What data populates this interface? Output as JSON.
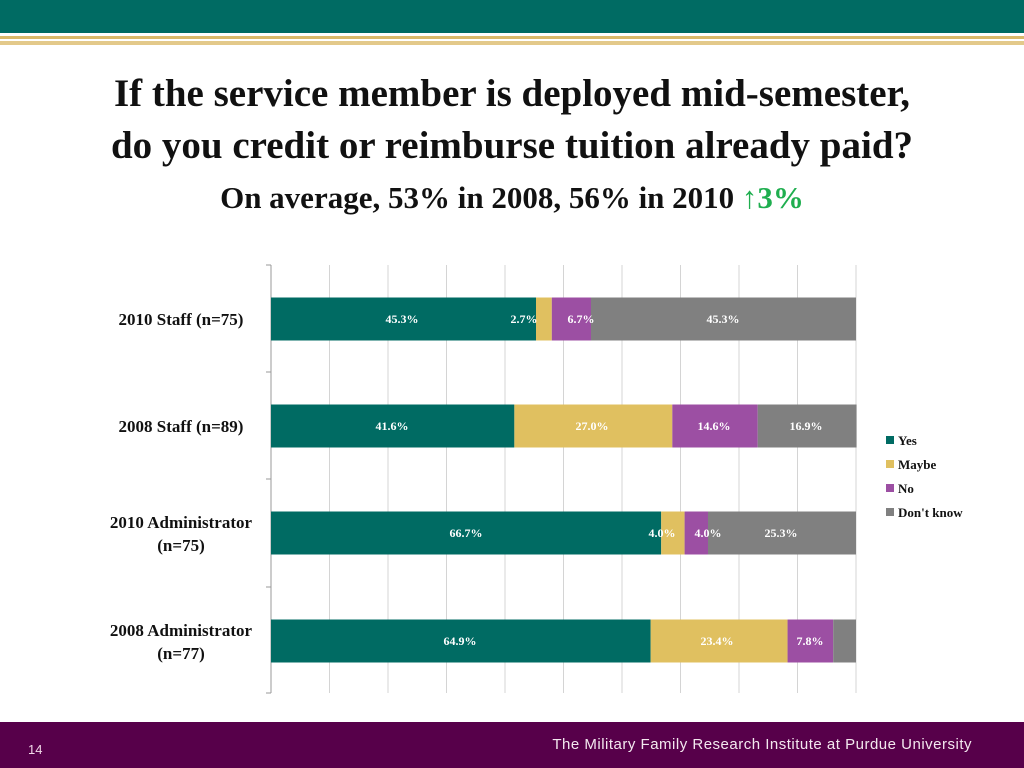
{
  "slide": {
    "title_line1": "If  the service member is deployed mid-semester,",
    "title_line2": "do you credit or reimburse tuition already paid?",
    "subtitle_main": "On average, 53% in 2008, 56% in 2010",
    "subtitle_arrow": "↑",
    "subtitle_delta": "3%",
    "page_number": "14",
    "footer_text": "The Military Family Research Institute at Purdue University"
  },
  "colors": {
    "header_bar": "#006b63",
    "footer_bar": "#57004a",
    "accent_green": "#1fae4f"
  },
  "chart_data": {
    "type": "bar",
    "orientation": "horizontal",
    "stacked": true,
    "title": "",
    "xlim": [
      0,
      100
    ],
    "grid": true,
    "legend_position": "right",
    "categories": [
      "2010 Staff (n=75)",
      "2008 Staff (n=89)",
      "2010 Administrator (n=75)",
      "2008 Administrator (n=77)"
    ],
    "category_lines": [
      [
        "2010 Staff (n=75)"
      ],
      [
        "2008 Staff (n=89)"
      ],
      [
        "2010 Administrator",
        "(n=75)"
      ],
      [
        "2008 Administrator",
        "(n=77)"
      ]
    ],
    "series": [
      {
        "name": "Yes",
        "color": "#006b63",
        "values": [
          45.3,
          41.6,
          66.7,
          64.9
        ],
        "labels": [
          "45.3%",
          "41.6%",
          "66.7%",
          "64.9%"
        ]
      },
      {
        "name": "Maybe",
        "color": "#e0c060",
        "values": [
          2.7,
          27.0,
          4.0,
          23.4
        ],
        "labels": [
          "2.7%",
          "27.0%",
          "4.0%",
          "23.4%"
        ]
      },
      {
        "name": "No",
        "color": "#9c4fa3",
        "values": [
          6.7,
          14.6,
          4.0,
          7.8
        ],
        "labels": [
          "6.7%",
          "14.6%",
          "4.0%",
          "7.8%"
        ]
      },
      {
        "name": "Don't know",
        "color": "#808080",
        "values": [
          45.3,
          16.9,
          25.3,
          3.9
        ],
        "labels": [
          "45.3%",
          "16.9%",
          "25.3%",
          "/"
        ]
      }
    ]
  }
}
